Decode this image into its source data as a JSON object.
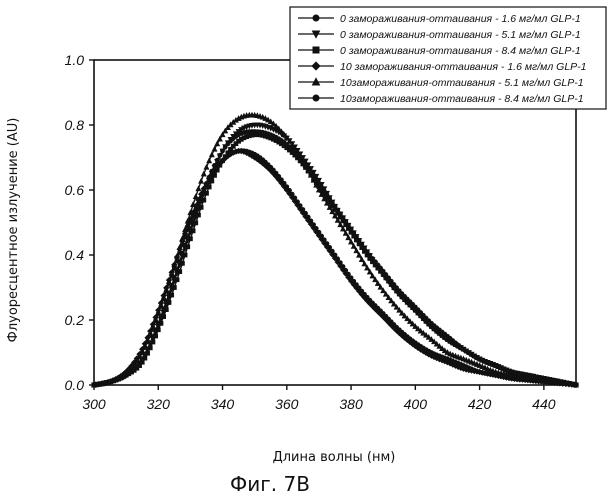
{
  "chart_data": {
    "type": "line",
    "xlabel": "Длина волны (нм)",
    "ylabel": "Флуоресцентное излучение (AU)",
    "xlim": [
      300,
      450
    ],
    "ylim": [
      0.0,
      1.0
    ],
    "x_ticks": [
      "300",
      "320",
      "340",
      "360",
      "380",
      "400",
      "420",
      "440"
    ],
    "y_ticks": [
      "0.0",
      "0.2",
      "0.4",
      "0.6",
      "0.8",
      "1.0"
    ],
    "legend_position": "top-right",
    "caption": "Фиг. 7B",
    "grid": false,
    "series": [
      {
        "name": "0 замораживания-оттаивания - 1.6 мг/мл GLP-1",
        "marker": "circle",
        "x": [
          300,
          305,
          310,
          315,
          320,
          325,
          330,
          335,
          340,
          345,
          350,
          355,
          360,
          365,
          370,
          375,
          380,
          385,
          390,
          395,
          400,
          405,
          410,
          415,
          420,
          425,
          430,
          435,
          440,
          445,
          450
        ],
        "y": [
          0.0,
          0.01,
          0.04,
          0.1,
          0.22,
          0.36,
          0.5,
          0.61,
          0.69,
          0.72,
          0.71,
          0.67,
          0.61,
          0.54,
          0.47,
          0.4,
          0.33,
          0.27,
          0.22,
          0.17,
          0.13,
          0.1,
          0.08,
          0.06,
          0.04,
          0.03,
          0.02,
          0.015,
          0.01,
          0.005,
          0.0
        ]
      },
      {
        "name": "0 замораживания-оттаивания - 5.1 мг/мл GLP-1",
        "marker": "triangle-down",
        "x": [
          300,
          305,
          310,
          315,
          320,
          325,
          330,
          335,
          340,
          345,
          350,
          355,
          360,
          365,
          370,
          375,
          380,
          385,
          390,
          395,
          400,
          405,
          410,
          415,
          420,
          425,
          430,
          435,
          440,
          445,
          450
        ],
        "y": [
          0.0,
          0.01,
          0.03,
          0.08,
          0.18,
          0.32,
          0.47,
          0.61,
          0.72,
          0.78,
          0.8,
          0.79,
          0.76,
          0.7,
          0.63,
          0.55,
          0.48,
          0.41,
          0.34,
          0.28,
          0.23,
          0.18,
          0.14,
          0.11,
          0.08,
          0.06,
          0.04,
          0.03,
          0.02,
          0.01,
          0.0
        ]
      },
      {
        "name": "0 замораживания-оттаивания - 8.4 мг/мл GLP-1",
        "marker": "square",
        "x": [
          300,
          305,
          310,
          315,
          320,
          325,
          330,
          335,
          340,
          345,
          350,
          355,
          360,
          365,
          370,
          375,
          380,
          385,
          390,
          395,
          400,
          405,
          410,
          415,
          420,
          425,
          430,
          435,
          440,
          445,
          450
        ],
        "y": [
          0.0,
          0.01,
          0.03,
          0.07,
          0.17,
          0.3,
          0.45,
          0.59,
          0.69,
          0.75,
          0.77,
          0.76,
          0.73,
          0.68,
          0.61,
          0.54,
          0.47,
          0.4,
          0.34,
          0.28,
          0.23,
          0.18,
          0.14,
          0.11,
          0.08,
          0.06,
          0.04,
          0.03,
          0.02,
          0.01,
          0.0
        ]
      },
      {
        "name": "10 замораживания-оттаивания - 1.6 мг/мл GLP-1",
        "marker": "diamond",
        "x": [
          300,
          305,
          310,
          315,
          320,
          325,
          330,
          335,
          340,
          345,
          350,
          355,
          360,
          365,
          370,
          375,
          380,
          385,
          390,
          395,
          400,
          405,
          410,
          415,
          420,
          425,
          430,
          435,
          440,
          445,
          450
        ],
        "y": [
          0.0,
          0.01,
          0.04,
          0.11,
          0.23,
          0.37,
          0.51,
          0.62,
          0.69,
          0.72,
          0.7,
          0.66,
          0.6,
          0.53,
          0.46,
          0.39,
          0.32,
          0.26,
          0.21,
          0.16,
          0.12,
          0.09,
          0.07,
          0.05,
          0.04,
          0.03,
          0.02,
          0.015,
          0.01,
          0.005,
          0.0
        ]
      },
      {
        "name": "10замораживания-оттаивания - 5.1 мг/мл GLP-1",
        "marker": "triangle-up",
        "x": [
          300,
          305,
          310,
          315,
          320,
          325,
          330,
          335,
          340,
          345,
          350,
          355,
          360,
          365,
          370,
          375,
          380,
          385,
          390,
          395,
          400,
          405,
          410,
          415,
          420,
          425,
          430,
          435,
          440,
          445,
          450
        ],
        "y": [
          0.0,
          0.01,
          0.04,
          0.1,
          0.22,
          0.37,
          0.53,
          0.67,
          0.77,
          0.82,
          0.83,
          0.81,
          0.76,
          0.69,
          0.6,
          0.52,
          0.44,
          0.36,
          0.29,
          0.23,
          0.18,
          0.14,
          0.1,
          0.08,
          0.06,
          0.04,
          0.03,
          0.02,
          0.015,
          0.01,
          0.0
        ]
      },
      {
        "name": "10замораживания-оттаивания - 8.4 мг/мл GLP-1",
        "marker": "circle",
        "x": [
          300,
          305,
          310,
          315,
          320,
          325,
          330,
          335,
          340,
          345,
          350,
          355,
          360,
          365,
          370,
          375,
          380,
          385,
          390,
          395,
          400,
          405,
          410,
          415,
          420,
          425,
          430,
          435,
          440,
          445,
          450
        ],
        "y": [
          0.0,
          0.01,
          0.03,
          0.08,
          0.19,
          0.33,
          0.48,
          0.62,
          0.72,
          0.77,
          0.78,
          0.77,
          0.74,
          0.69,
          0.62,
          0.55,
          0.48,
          0.41,
          0.35,
          0.29,
          0.24,
          0.19,
          0.15,
          0.11,
          0.08,
          0.06,
          0.04,
          0.03,
          0.02,
          0.01,
          0.0
        ]
      }
    ]
  }
}
